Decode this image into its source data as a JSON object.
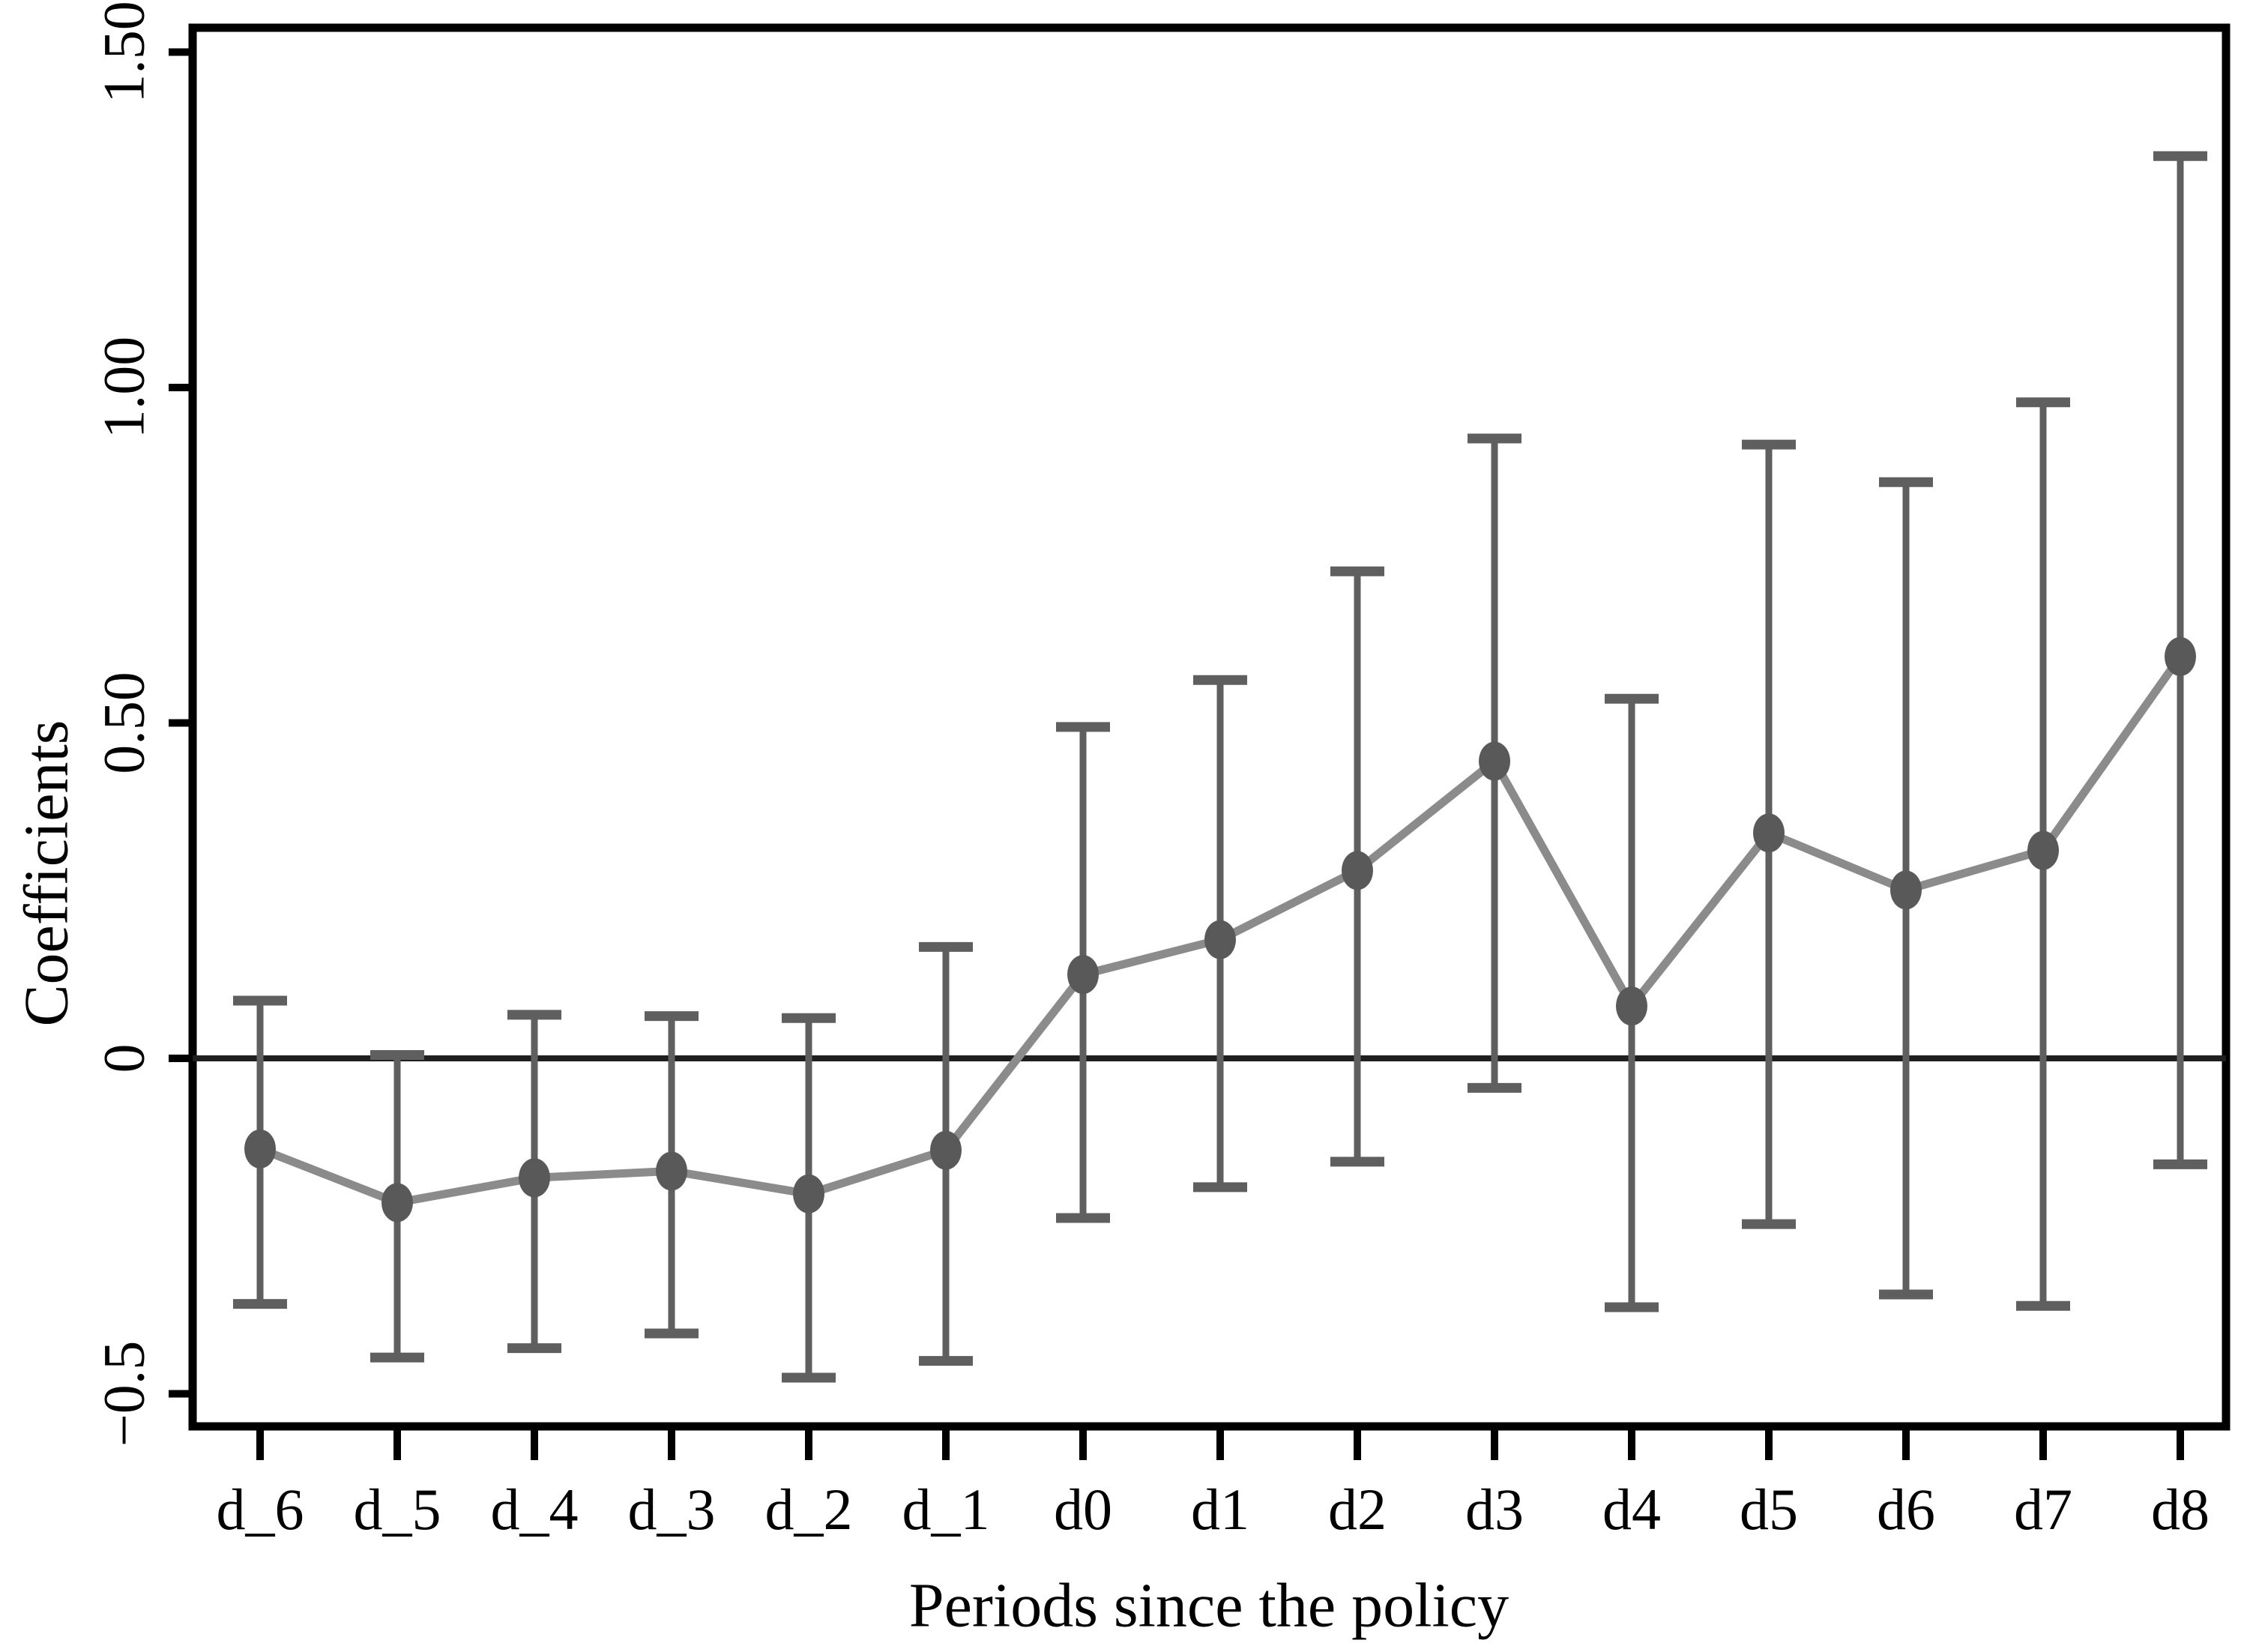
{
  "figure": {
    "background": "#ffffff"
  },
  "chart_data": {
    "type": "line",
    "subtype": "coefficient-plot-with-error-bars",
    "title": "",
    "xlabel": "Periods since the policy",
    "ylabel": "Coefficients",
    "categories": [
      "d_6",
      "d_5",
      "d_4",
      "d_3",
      "d_2",
      "d_1",
      "d0",
      "d1",
      "d2",
      "d3",
      "d4",
      "d5",
      "d6",
      "d7",
      "d8"
    ],
    "series": [
      {
        "name": "coefficients",
        "values": [
          -0.135,
          -0.215,
          -0.178,
          -0.168,
          -0.202,
          -0.137,
          0.125,
          0.177,
          0.28,
          0.443,
          0.078,
          0.336,
          0.251,
          0.31,
          0.599
        ],
        "ci_lower": [
          -0.366,
          -0.446,
          -0.432,
          -0.41,
          -0.476,
          -0.451,
          -0.238,
          -0.192,
          -0.154,
          -0.044,
          -0.371,
          -0.247,
          -0.352,
          -0.369,
          -0.158
        ],
        "ci_upper": [
          0.086,
          0.005,
          0.065,
          0.063,
          0.06,
          0.166,
          0.494,
          0.564,
          0.726,
          0.924,
          0.536,
          0.915,
          0.859,
          0.978,
          1.345
        ]
      }
    ],
    "y_ticks": [
      {
        "value": 1.5,
        "label": "1.50"
      },
      {
        "value": 1.0,
        "label": "1.00"
      },
      {
        "value": 0.5,
        "label": "0.50"
      },
      {
        "value": 0.0,
        "label": "0"
      },
      {
        "value": -0.5,
        "label": "−0.5"
      }
    ],
    "ylim": [
      -0.55,
      1.54
    ],
    "reference_line_y": 0,
    "grid": false,
    "legend": "none",
    "colors": {
      "point": "#595959",
      "error_bar": "#5f5f5f",
      "line": "#8b8b8b",
      "axis": "#000000",
      "zero_line": "#1f1f1f"
    }
  }
}
